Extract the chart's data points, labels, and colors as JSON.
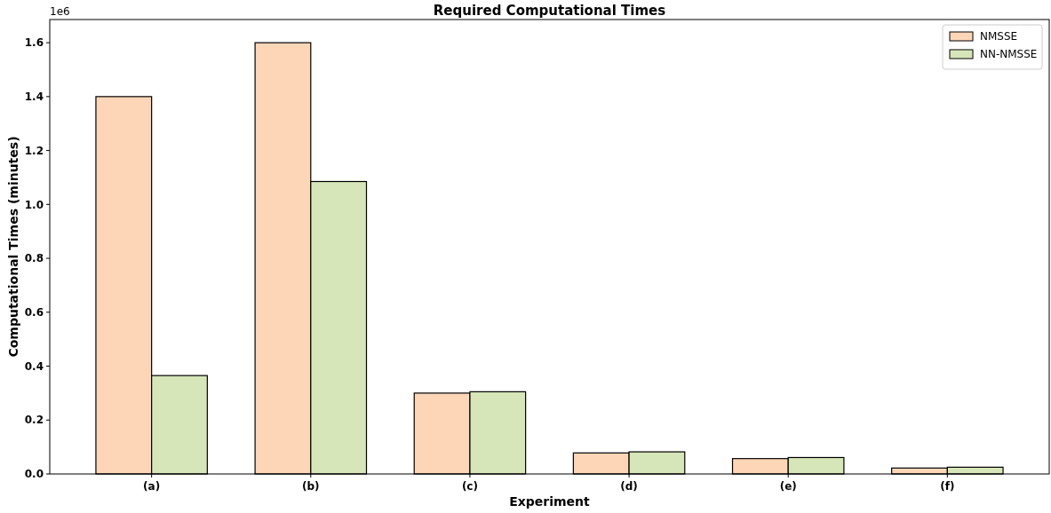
{
  "chart_data": {
    "type": "bar",
    "title": "Required Computational Times",
    "xlabel": "Experiment",
    "ylabel": "Computational Times (minutes)",
    "categories": [
      "(a)",
      "(b)",
      "(c)",
      "(d)",
      "(e)",
      "(f)"
    ],
    "series": [
      {
        "name": "NMSSE",
        "color": "#fdd6b7",
        "values": [
          1.4,
          1.6,
          0.3,
          0.078,
          0.057,
          0.022
        ]
      },
      {
        "name": "NN-NMSSE",
        "color": "#d6e6b8",
        "values": [
          0.365,
          1.085,
          0.305,
          0.082,
          0.061,
          0.025
        ]
      }
    ],
    "ylim": [
      0,
      1.686
    ],
    "yticks": [
      {
        "value": 0,
        "label": "0.0"
      },
      {
        "value": 0.2,
        "label": "0.2"
      },
      {
        "value": 0.4,
        "label": "0.4"
      },
      {
        "value": 0.6,
        "label": "0.6"
      },
      {
        "value": 0.8,
        "label": "0.8"
      },
      {
        "value": 1,
        "label": "1.0"
      },
      {
        "value": 1.2,
        "label": "1.2"
      },
      {
        "value": 1.4,
        "label": "1.4"
      },
      {
        "value": 1.6,
        "label": "1.6"
      }
    ],
    "annotations": [
      "1e6"
    ],
    "legend": "top right",
    "grid": false
  }
}
